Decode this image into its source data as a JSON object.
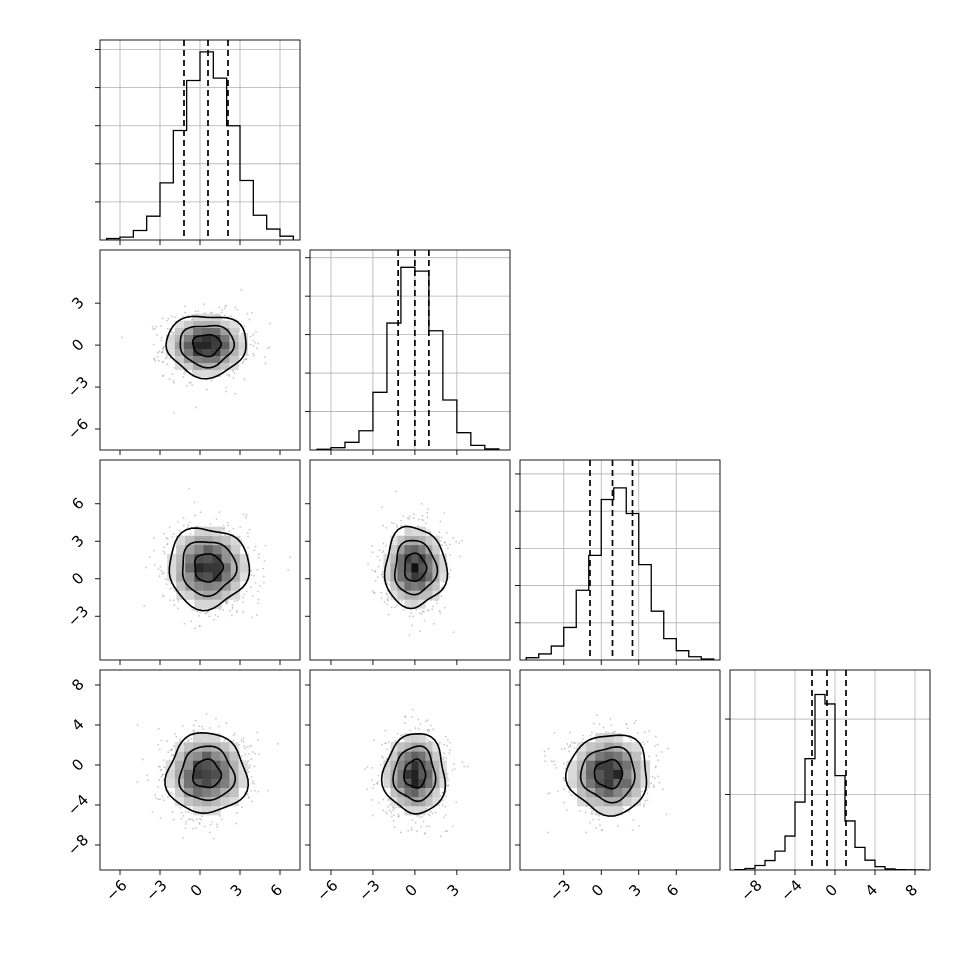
{
  "chart_data": {
    "type": "corner",
    "parameters": 4,
    "grid": true,
    "colors": {
      "line": "#000000",
      "grid": "#b0b0b0",
      "points": "#9a9a9a"
    },
    "diagonal": [
      {
        "name": "",
        "range": [
          -7.5,
          7.5
        ],
        "ylim": [
          0,
          4200
        ],
        "bins": [
          -7,
          -6,
          -5,
          -4,
          -3,
          -2,
          -1,
          0,
          1,
          2,
          3,
          4,
          5,
          6,
          7
        ],
        "counts": [
          30,
          60,
          200,
          500,
          1200,
          2300,
          3350,
          3950,
          3400,
          2400,
          1250,
          520,
          230,
          80
        ],
        "quantiles": [
          -1.2,
          0.6,
          2.1
        ]
      },
      {
        "name": "",
        "range": [
          -7.5,
          6.8
        ],
        "ylim": [
          0,
          5200
        ],
        "bins": [
          -7,
          -6,
          -5,
          -4,
          -3,
          -2,
          -1,
          0,
          1,
          2,
          3,
          4,
          5,
          6
        ],
        "counts": [
          20,
          60,
          200,
          500,
          1500,
          3300,
          4750,
          4650,
          3100,
          1300,
          450,
          120,
          30
        ],
        "quantiles": [
          -1.2,
          0.0,
          1.0
        ]
      },
      {
        "name": "",
        "range": [
          -6.5,
          9.5
        ],
        "ylim": [
          0,
          4300
        ],
        "bins": [
          -6,
          -5,
          -4,
          -3,
          -2,
          -1,
          0,
          1,
          2,
          3,
          4,
          5,
          6,
          7,
          8,
          9
        ],
        "counts": [
          50,
          130,
          300,
          700,
          1500,
          2250,
          3450,
          3700,
          3150,
          2050,
          1050,
          460,
          200,
          70,
          20
        ],
        "quantiles": [
          -0.9,
          0.9,
          2.5
        ]
      },
      {
        "name": "",
        "range": [
          -10.5,
          9.5
        ],
        "ylim": [
          0,
          5300
        ],
        "bins": [
          -10,
          -9,
          -8,
          -7,
          -6,
          -5,
          -4,
          -3,
          -2,
          -1,
          0,
          1,
          2,
          3,
          4,
          5,
          6,
          7,
          8,
          9
        ],
        "counts": [
          10,
          40,
          120,
          250,
          500,
          900,
          1800,
          2950,
          4650,
          4400,
          2500,
          1300,
          600,
          260,
          90,
          30,
          10,
          5,
          2
        ],
        "quantiles": [
          -2.3,
          -0.8,
          1.1
        ]
      }
    ],
    "pairs": [
      {
        "x": 0,
        "y": 1,
        "center": [
          0.5,
          0.0
        ],
        "sd": [
          1.5,
          1.1
        ],
        "level_radii": [
          0.7,
          1.35,
          2.0
        ],
        "point_count": 900
      },
      {
        "x": 0,
        "y": 2,
        "center": [
          0.6,
          0.9
        ],
        "sd": [
          1.5,
          1.6
        ],
        "level_radii": [
          0.7,
          1.35,
          2.0
        ],
        "point_count": 900
      },
      {
        "x": 1,
        "y": 2,
        "center": [
          0.0,
          0.9
        ],
        "sd": [
          1.1,
          1.6
        ],
        "level_radii": [
          0.7,
          1.35,
          2.0
        ],
        "point_count": 900
      },
      {
        "x": 0,
        "y": 3,
        "center": [
          0.5,
          -0.9
        ],
        "sd": [
          1.5,
          2.0
        ],
        "level_radii": [
          0.7,
          1.35,
          2.0
        ],
        "point_count": 900
      },
      {
        "x": 1,
        "y": 3,
        "center": [
          0.0,
          -0.9
        ],
        "sd": [
          1.1,
          2.0
        ],
        "level_radii": [
          0.7,
          1.35,
          2.0
        ],
        "point_count": 900
      },
      {
        "x": 2,
        "y": 3,
        "center": [
          0.6,
          -0.9
        ],
        "sd": [
          1.6,
          2.0
        ],
        "level_radii": [
          0.7,
          1.35,
          2.0
        ],
        "point_count": 900
      }
    ],
    "x_ticks": [
      {
        "values": [
          -6,
          -3,
          0,
          3,
          6
        ],
        "labels": [
          "−6",
          "−3",
          "0",
          "3",
          "6"
        ]
      },
      {
        "values": [
          -6,
          -3,
          0,
          3
        ],
        "labels": [
          "−6",
          "−3",
          "0",
          "3"
        ]
      },
      {
        "values": [
          -3,
          0,
          3,
          6
        ],
        "labels": [
          "−3",
          "0",
          "3",
          "6"
        ]
      },
      {
        "values": [
          -8,
          -4,
          0,
          4,
          8
        ],
        "labels": [
          "−8",
          "−4",
          "0",
          "4",
          "8"
        ]
      }
    ],
    "y_ticks": [
      null,
      {
        "values": [
          3,
          0,
          -3,
          -6
        ],
        "labels": [
          "3",
          "0",
          "−3",
          "−6"
        ]
      },
      {
        "values": [
          6,
          3,
          0,
          -3
        ],
        "labels": [
          "6",
          "3",
          "0",
          "−3"
        ]
      },
      {
        "values": [
          8,
          4,
          0,
          -4,
          -8
        ],
        "labels": [
          "8",
          "4",
          "0",
          "−4",
          "−8"
        ]
      }
    ],
    "hist_y_ticks": [
      [
        800,
        1600,
        2400,
        3200,
        4000
      ],
      [
        1000,
        2000,
        3000,
        4000,
        5000
      ],
      [
        800,
        1600,
        2400,
        3200,
        4000
      ],
      [
        2000,
        4000
      ]
    ]
  }
}
